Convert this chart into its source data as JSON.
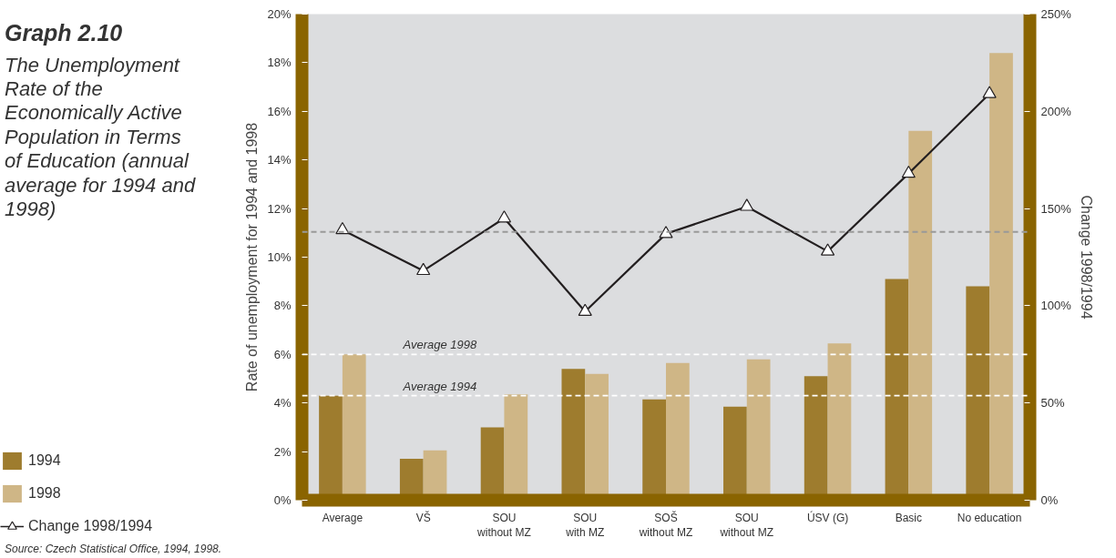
{
  "chart_data": {
    "type": "bar",
    "title": "Graph 2.10",
    "subtitle": "The Unemployment Rate of the Economically Active Population in Terms of Education (annual average for 1994 and 1998)",
    "ylabel": "Rate of unemployment for 1994 and 1998",
    "y2label": "Change 1998/1994",
    "annotations": [
      "Source: Czech Statistical Office, 1994, 1998."
    ],
    "categories": [
      "Average",
      "VŠ",
      "SOU\nwithout MZ",
      "SOU\nwith MZ",
      "SOŠ\nwithout MZ",
      "SOU\nwithout MZ",
      "ÚSV (G)",
      "Basic",
      "No education"
    ],
    "series": [
      {
        "name": "1994",
        "color": "#9e7c2e",
        "values": [
          4.3,
          1.7,
          3.0,
          5.4,
          4.15,
          3.85,
          5.1,
          9.1,
          8.8
        ]
      },
      {
        "name": "1998",
        "color": "#cfb686",
        "values": [
          6.0,
          2.05,
          4.35,
          5.2,
          5.65,
          5.8,
          6.45,
          15.2,
          18.4
        ]
      },
      {
        "name": "Change 1998/1994",
        "type": "line",
        "axis": "y2",
        "color": "#231f20",
        "marker": "triangle",
        "line_style": "solid",
        "values": [
          139,
          118,
          145,
          97,
          137,
          151,
          128,
          168,
          209
        ]
      }
    ],
    "ylim": [
      0,
      20
    ],
    "yticks": [
      {
        "value": 0,
        "label": "0%"
      },
      {
        "value": 2,
        "label": "2%"
      },
      {
        "value": 4,
        "label": "4%"
      },
      {
        "value": 6,
        "label": "6%"
      },
      {
        "value": 8,
        "label": "8%"
      },
      {
        "value": 10,
        "label": "10%"
      },
      {
        "value": 12,
        "label": "12%"
      },
      {
        "value": 14,
        "label": "14%"
      },
      {
        "value": 16,
        "label": "16%"
      },
      {
        "value": 18,
        "label": "18%"
      },
      {
        "value": 20,
        "label": "20%"
      }
    ],
    "y2lim": [
      0,
      250
    ],
    "y2ticks": [
      {
        "value": 0,
        "label": "0%"
      },
      {
        "value": 50,
        "label": "50%"
      },
      {
        "value": 100,
        "label": "100%"
      },
      {
        "value": 150,
        "label": "150%"
      },
      {
        "value": 200,
        "label": "200%"
      },
      {
        "value": 250,
        "label": "250%"
      }
    ],
    "ref_lines": [
      {
        "axis": "y",
        "value": 6.0,
        "label": "Average 1998",
        "color": "#ffffff",
        "line_style": "dashed"
      },
      {
        "axis": "y",
        "value": 4.3,
        "label": "Average 1994",
        "color": "#ffffff",
        "line_style": "dashed"
      },
      {
        "axis": "y2",
        "value": 138,
        "color": "#999999",
        "line_style": "dashed"
      }
    ],
    "grid": false,
    "legend": "bottom left"
  }
}
